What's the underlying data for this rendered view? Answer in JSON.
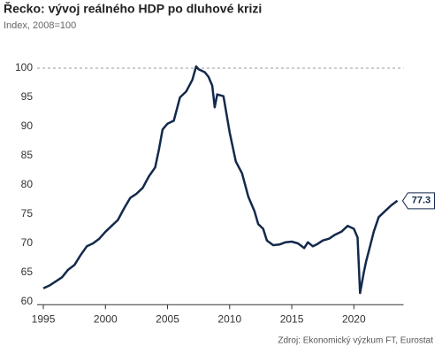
{
  "chart_data": {
    "type": "line",
    "title": "Řecko: vývoj reálného HDP po dluhové krizi",
    "subtitle": "Index, 2008=100",
    "source": "Zdroj: Ekonomický výzkum FT, Eurostat",
    "color": "#13294b",
    "x": [
      1995,
      1995.5,
      1996,
      1996.5,
      1997,
      1997.5,
      1998,
      1998.5,
      1999,
      1999.5,
      2000,
      2000.5,
      2001,
      2001.5,
      2002,
      2002.5,
      2003,
      2003.5,
      2004,
      2004.3,
      2004.6,
      2005,
      2005.5,
      2006,
      2006.5,
      2007,
      2007.3,
      2007.5,
      2008,
      2008.3,
      2008.6,
      2008.8,
      2009,
      2009.5,
      2010,
      2010.5,
      2011,
      2011.5,
      2012,
      2012.3,
      2012.7,
      2013,
      2013.5,
      2014,
      2014.5,
      2015,
      2015.5,
      2016,
      2016.3,
      2016.7,
      2017,
      2017.5,
      2018,
      2018.5,
      2019,
      2019.5,
      2020,
      2020.3,
      2020.5,
      2020.8,
      2021,
      2021.3,
      2021.6,
      2022,
      2022.5,
      2023,
      2023.5
    ],
    "values": [
      62.3,
      62.8,
      63.5,
      64.2,
      65.5,
      66.3,
      68,
      69.5,
      70,
      70.8,
      72,
      73,
      74,
      76,
      77.8,
      78.5,
      79.5,
      81.5,
      83,
      86,
      89.5,
      90.5,
      91,
      95,
      96,
      98,
      100.3,
      99.8,
      99.3,
      98.5,
      97,
      93.3,
      95.5,
      95.2,
      89,
      84,
      82,
      78,
      75.5,
      73.3,
      72.5,
      70.5,
      69.7,
      69.8,
      70.2,
      70.3,
      70,
      69.2,
      70.2,
      69.5,
      69.8,
      70.5,
      70.8,
      71.5,
      72,
      73,
      72.5,
      71,
      61.5,
      65,
      67,
      69.5,
      72,
      74.5,
      75.5,
      76.5,
      77.3
    ],
    "xlim": [
      1994.5,
      2024
    ],
    "ylim": [
      59.5,
      102
    ],
    "xticks": [
      1995,
      2000,
      2005,
      2010,
      2015,
      2020
    ],
    "yticks": [
      60,
      65,
      70,
      75,
      80,
      85,
      90,
      95,
      100
    ],
    "reference_line": 100
  }
}
